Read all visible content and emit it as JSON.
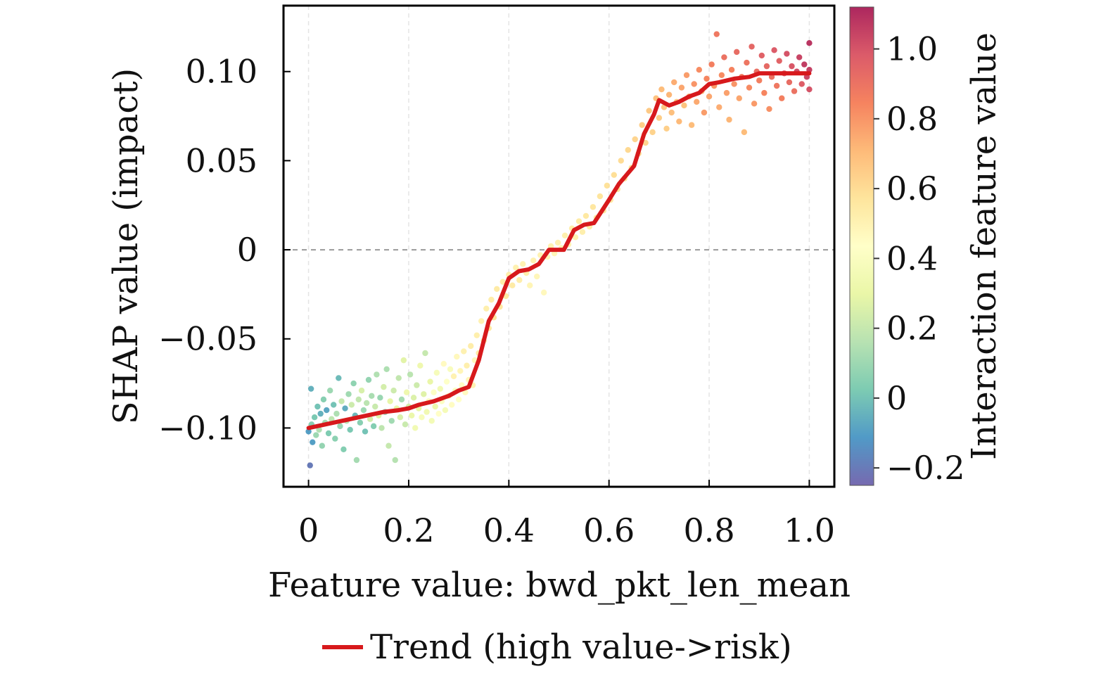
{
  "chart_data": {
    "type": "scatter",
    "title": "",
    "xlabel": "Feature value: bwd_pkt_len_mean",
    "ylabel": "SHAP value (impact)",
    "xlim": [
      -0.05,
      1.05
    ],
    "ylim": [
      -0.133,
      0.137
    ],
    "x_ticks": [
      0,
      0.2,
      0.4,
      0.6,
      0.8,
      1.0
    ],
    "x_tick_labels": [
      "0",
      "0.2",
      "0.4",
      "0.6",
      "0.8",
      "1.0"
    ],
    "y_ticks": [
      0.1,
      0.05,
      0,
      -0.05,
      -0.1
    ],
    "y_tick_labels": [
      "0.10",
      "0.05",
      "0",
      "−0.05",
      "−0.10"
    ],
    "reference_line": {
      "y": 0,
      "style": "dashed",
      "color": "#9a9a9a"
    },
    "x_grid": true,
    "colorbar": {
      "label": "Interaction feature value",
      "range": [
        -0.25,
        1.12
      ],
      "ticks": [
        1.0,
        0.8,
        0.6,
        0.4,
        0.2,
        0,
        -0.2
      ],
      "tick_labels": [
        "1.0",
        "0.8",
        "0.6",
        "0.4",
        "0.2",
        "0",
        "−0.2"
      ],
      "colormap": "Spectral_r",
      "stops": [
        "#5e4fa2",
        "#3288bd",
        "#66c2a5",
        "#abdda4",
        "#e6f598",
        "#ffffbf",
        "#fee08b",
        "#fdae61",
        "#f46d43",
        "#d53e4f",
        "#9e0142"
      ]
    },
    "trend": {
      "name": "Trend (high value->risk)",
      "color": "#d7191c",
      "x": [
        0,
        0.05,
        0.1,
        0.15,
        0.18,
        0.2,
        0.22,
        0.25,
        0.28,
        0.3,
        0.32,
        0.34,
        0.36,
        0.38,
        0.4,
        0.42,
        0.44,
        0.46,
        0.48,
        0.51,
        0.53,
        0.55,
        0.57,
        0.6,
        0.62,
        0.65,
        0.67,
        0.69,
        0.7,
        0.72,
        0.74,
        0.76,
        0.78,
        0.8,
        0.82,
        0.85,
        0.88,
        0.9,
        0.93,
        0.96,
        0.98,
        1.0
      ],
      "y": [
        -0.1,
        -0.097,
        -0.094,
        -0.091,
        -0.09,
        -0.089,
        -0.087,
        -0.085,
        -0.082,
        -0.079,
        -0.077,
        -0.062,
        -0.04,
        -0.03,
        -0.016,
        -0.012,
        -0.011,
        -0.008,
        0.0,
        0.0,
        0.011,
        0.014,
        0.015,
        0.028,
        0.037,
        0.047,
        0.065,
        0.076,
        0.084,
        0.081,
        0.083,
        0.086,
        0.088,
        0.093,
        0.094,
        0.096,
        0.097,
        0.099,
        0.099,
        0.099,
        0.099,
        0.099
      ]
    },
    "scatter": {
      "description_points": "sampled SHAP values for bwd_pkt_len_mean, colored by interaction feature value",
      "points": [
        [
          0.0,
          -0.102,
          -0.1
        ],
        [
          0.003,
          -0.121,
          -0.2
        ],
        [
          0.005,
          -0.078,
          -0.05
        ],
        [
          0.006,
          -0.098,
          0.05
        ],
        [
          0.008,
          -0.108,
          -0.1
        ],
        [
          0.012,
          -0.094,
          0.02
        ],
        [
          0.015,
          -0.104,
          0.1
        ],
        [
          0.018,
          -0.088,
          0.0
        ],
        [
          0.021,
          -0.101,
          0.15
        ],
        [
          0.024,
          -0.092,
          -0.05
        ],
        [
          0.027,
          -0.11,
          0.08
        ],
        [
          0.03,
          -0.084,
          0.05
        ],
        [
          0.033,
          -0.097,
          0.12
        ],
        [
          0.036,
          -0.09,
          -0.08
        ],
        [
          0.04,
          -0.103,
          0.03
        ],
        [
          0.043,
          -0.079,
          0.1
        ],
        [
          0.046,
          -0.095,
          0.18
        ],
        [
          0.05,
          -0.087,
          0.0
        ],
        [
          0.053,
          -0.106,
          0.06
        ],
        [
          0.056,
          -0.092,
          0.14
        ],
        [
          0.06,
          -0.072,
          -0.02
        ],
        [
          0.063,
          -0.099,
          0.09
        ],
        [
          0.066,
          -0.085,
          0.2
        ],
        [
          0.07,
          -0.112,
          0.04
        ],
        [
          0.073,
          -0.089,
          -0.06
        ],
        [
          0.076,
          -0.096,
          0.16
        ],
        [
          0.08,
          -0.081,
          0.11
        ],
        [
          0.083,
          -0.101,
          0.02
        ],
        [
          0.086,
          -0.087,
          0.22
        ],
        [
          0.09,
          -0.075,
          0.07
        ],
        [
          0.093,
          -0.093,
          -0.03
        ],
        [
          0.096,
          -0.118,
          0.12
        ],
        [
          0.1,
          -0.084,
          0.19
        ],
        [
          0.103,
          -0.097,
          0.05
        ],
        [
          0.106,
          -0.079,
          0.25
        ],
        [
          0.11,
          -0.09,
          0.1
        ],
        [
          0.113,
          -0.102,
          0.0
        ],
        [
          0.116,
          -0.086,
          0.17
        ],
        [
          0.12,
          -0.073,
          0.08
        ],
        [
          0.123,
          -0.095,
          0.23
        ],
        [
          0.126,
          -0.082,
          0.13
        ],
        [
          0.13,
          -0.099,
          0.04
        ],
        [
          0.133,
          -0.088,
          0.21
        ],
        [
          0.136,
          -0.07,
          0.15
        ],
        [
          0.14,
          -0.093,
          0.27
        ],
        [
          0.143,
          -0.083,
          0.09
        ],
        [
          0.146,
          -0.1,
          0.18
        ],
        [
          0.15,
          -0.077,
          0.24
        ],
        [
          0.153,
          -0.091,
          0.06
        ],
        [
          0.156,
          -0.067,
          0.14
        ],
        [
          0.16,
          -0.11,
          0.2
        ],
        [
          0.163,
          -0.085,
          0.29
        ],
        [
          0.166,
          -0.096,
          0.11
        ],
        [
          0.17,
          -0.079,
          0.22
        ],
        [
          0.173,
          -0.118,
          0.16
        ],
        [
          0.176,
          -0.089,
          0.3
        ],
        [
          0.18,
          -0.072,
          0.19
        ],
        [
          0.183,
          -0.094,
          0.25
        ],
        [
          0.186,
          -0.084,
          0.12
        ],
        [
          0.19,
          -0.062,
          0.28
        ],
        [
          0.193,
          -0.098,
          0.21
        ],
        [
          0.196,
          -0.08,
          0.33
        ],
        [
          0.2,
          -0.088,
          0.24
        ],
        [
          0.203,
          -0.07,
          0.17
        ],
        [
          0.206,
          -0.093,
          0.31
        ],
        [
          0.21,
          -0.083,
          0.26
        ],
        [
          0.213,
          -0.1,
          0.35
        ],
        [
          0.216,
          -0.076,
          0.22
        ],
        [
          0.22,
          -0.089,
          0.29
        ],
        [
          0.223,
          -0.065,
          0.33
        ],
        [
          0.226,
          -0.094,
          0.38
        ],
        [
          0.23,
          -0.081,
          0.27
        ],
        [
          0.233,
          -0.058,
          0.2
        ],
        [
          0.236,
          -0.091,
          0.34
        ],
        [
          0.24,
          -0.085,
          0.4
        ],
        [
          0.243,
          -0.074,
          0.3
        ],
        [
          0.246,
          -0.096,
          0.36
        ],
        [
          0.25,
          -0.08,
          0.42
        ],
        [
          0.253,
          -0.088,
          0.32
        ],
        [
          0.256,
          -0.069,
          0.38
        ],
        [
          0.26,
          -0.092,
          0.44
        ],
        [
          0.263,
          -0.078,
          0.35
        ],
        [
          0.266,
          -0.085,
          0.41
        ],
        [
          0.27,
          -0.064,
          0.46
        ],
        [
          0.273,
          -0.09,
          0.37
        ],
        [
          0.276,
          -0.074,
          0.43
        ],
        [
          0.28,
          -0.082,
          0.48
        ],
        [
          0.283,
          -0.067,
          0.39
        ],
        [
          0.286,
          -0.087,
          0.45
        ],
        [
          0.29,
          -0.071,
          0.5
        ],
        [
          0.293,
          -0.079,
          0.41
        ],
        [
          0.296,
          -0.06,
          0.47
        ],
        [
          0.3,
          -0.084,
          0.43
        ],
        [
          0.303,
          -0.068,
          0.49
        ],
        [
          0.306,
          -0.076,
          0.44
        ],
        [
          0.31,
          -0.057,
          0.51
        ],
        [
          0.313,
          -0.08,
          0.46
        ],
        [
          0.316,
          -0.065,
          0.52
        ],
        [
          0.32,
          -0.073,
          0.48
        ],
        [
          0.324,
          -0.054,
          0.53
        ],
        [
          0.328,
          -0.076,
          0.5
        ],
        [
          0.332,
          -0.062,
          0.47
        ],
        [
          0.336,
          -0.048,
          0.52
        ],
        [
          0.34,
          -0.058,
          0.54
        ],
        [
          0.345,
          -0.04,
          0.5
        ],
        [
          0.35,
          -0.051,
          0.55
        ],
        [
          0.355,
          -0.033,
          0.52
        ],
        [
          0.36,
          -0.044,
          0.56
        ],
        [
          0.365,
          -0.028,
          0.53
        ],
        [
          0.37,
          -0.038,
          0.57
        ],
        [
          0.376,
          -0.022,
          0.54
        ],
        [
          0.382,
          -0.032,
          0.56
        ],
        [
          0.388,
          -0.018,
          0.53
        ],
        [
          0.394,
          -0.026,
          0.55
        ],
        [
          0.4,
          -0.014,
          0.52
        ],
        [
          0.407,
          -0.02,
          0.54
        ],
        [
          0.414,
          -0.01,
          0.51
        ],
        [
          0.421,
          -0.017,
          0.53
        ],
        [
          0.428,
          -0.008,
          0.5
        ],
        [
          0.435,
          -0.013,
          0.52
        ],
        [
          0.442,
          -0.02,
          0.49
        ],
        [
          0.449,
          -0.006,
          0.51
        ],
        [
          0.456,
          -0.015,
          0.48
        ],
        [
          0.463,
          -0.003,
          0.5
        ],
        [
          0.47,
          -0.024,
          0.47
        ],
        [
          0.477,
          -0.004,
          0.49
        ],
        [
          0.484,
          0.002,
          0.5
        ],
        [
          0.491,
          -0.002,
          0.48
        ],
        [
          0.498,
          0.004,
          0.51
        ],
        [
          0.505,
          0.001,
          0.49
        ],
        [
          0.512,
          0.008,
          0.52
        ],
        [
          0.519,
          0.003,
          0.5
        ],
        [
          0.526,
          0.012,
          0.53
        ],
        [
          0.533,
          0.007,
          0.51
        ],
        [
          0.54,
          0.016,
          0.54
        ],
        [
          0.547,
          0.01,
          0.52
        ],
        [
          0.554,
          0.019,
          0.55
        ],
        [
          0.561,
          0.013,
          0.53
        ],
        [
          0.568,
          0.024,
          0.56
        ],
        [
          0.575,
          0.018,
          0.54
        ],
        [
          0.582,
          0.03,
          0.57
        ],
        [
          0.589,
          0.022,
          0.55
        ],
        [
          0.596,
          0.036,
          0.58
        ],
        [
          0.603,
          0.028,
          0.56
        ],
        [
          0.61,
          0.042,
          0.59
        ],
        [
          0.617,
          0.034,
          0.57
        ],
        [
          0.624,
          0.05,
          0.6
        ],
        [
          0.631,
          0.04,
          0.58
        ],
        [
          0.638,
          0.056,
          0.61
        ],
        [
          0.645,
          0.046,
          0.59
        ],
        [
          0.652,
          0.062,
          0.62
        ],
        [
          0.659,
          0.054,
          0.6
        ],
        [
          0.666,
          0.07,
          0.64
        ],
        [
          0.673,
          0.06,
          0.62
        ],
        [
          0.68,
          0.078,
          0.66
        ],
        [
          0.687,
          0.066,
          0.63
        ],
        [
          0.694,
          0.085,
          0.68
        ],
        [
          0.7,
          0.074,
          0.65
        ],
        [
          0.705,
          0.09,
          0.7
        ],
        [
          0.71,
          0.08,
          0.67
        ],
        [
          0.715,
          0.068,
          0.64
        ],
        [
          0.72,
          0.087,
          0.72
        ],
        [
          0.725,
          0.077,
          0.69
        ],
        [
          0.73,
          0.094,
          0.74
        ],
        [
          0.735,
          0.083,
          0.66
        ],
        [
          0.74,
          0.072,
          0.71
        ],
        [
          0.745,
          0.091,
          0.76
        ],
        [
          0.75,
          0.081,
          0.68
        ],
        [
          0.755,
          0.098,
          0.78
        ],
        [
          0.76,
          0.086,
          0.73
        ],
        [
          0.765,
          0.07,
          0.7
        ],
        [
          0.77,
          0.093,
          0.8
        ],
        [
          0.775,
          0.083,
          0.75
        ],
        [
          0.78,
          0.101,
          0.82
        ],
        [
          0.785,
          0.089,
          0.72
        ],
        [
          0.79,
          0.077,
          0.78
        ],
        [
          0.795,
          0.096,
          0.84
        ],
        [
          0.8,
          0.086,
          0.76
        ],
        [
          0.805,
          0.104,
          0.86
        ],
        [
          0.81,
          0.092,
          0.79
        ],
        [
          0.815,
          0.121,
          0.88
        ],
        [
          0.82,
          0.08,
          0.74
        ],
        [
          0.825,
          0.098,
          0.82
        ],
        [
          0.83,
          0.108,
          0.9
        ],
        [
          0.835,
          0.088,
          0.77
        ],
        [
          0.84,
          0.073,
          0.72
        ],
        [
          0.845,
          0.101,
          0.85
        ],
        [
          0.85,
          0.093,
          0.8
        ],
        [
          0.855,
          0.111,
          0.92
        ],
        [
          0.86,
          0.085,
          0.76
        ],
        [
          0.865,
          0.097,
          0.87
        ],
        [
          0.87,
          0.066,
          0.7
        ],
        [
          0.875,
          0.105,
          0.89
        ],
        [
          0.88,
          0.091,
          0.83
        ],
        [
          0.885,
          0.114,
          0.94
        ],
        [
          0.89,
          0.082,
          0.79
        ],
        [
          0.895,
          0.1,
          0.91
        ],
        [
          0.9,
          0.095,
          0.86
        ],
        [
          0.905,
          0.109,
          0.96
        ],
        [
          0.91,
          0.088,
          0.84
        ],
        [
          0.915,
          0.103,
          0.93
        ],
        [
          0.92,
          0.079,
          0.81
        ],
        [
          0.925,
          0.097,
          0.9
        ],
        [
          0.93,
          0.112,
          0.98
        ],
        [
          0.935,
          0.092,
          0.88
        ],
        [
          0.94,
          0.106,
          0.95
        ],
        [
          0.945,
          0.085,
          0.86
        ],
        [
          0.95,
          0.099,
          0.97
        ],
        [
          0.955,
          0.11,
          1.0
        ],
        [
          0.96,
          0.094,
          0.92
        ],
        [
          0.965,
          0.103,
          0.99
        ],
        [
          0.97,
          0.089,
          0.9
        ],
        [
          0.975,
          0.1,
          1.02
        ],
        [
          0.98,
          0.108,
          1.04
        ],
        [
          0.985,
          0.093,
          0.97
        ],
        [
          0.99,
          0.104,
          1.06
        ],
        [
          0.995,
          0.097,
          1.03
        ],
        [
          1.0,
          0.116,
          1.08
        ],
        [
          1.0,
          0.09,
          1.0
        ],
        [
          1.0,
          0.101,
          1.05
        ]
      ]
    },
    "legend": {
      "position": "bottom-center",
      "entries": [
        {
          "label": "Trend (high value->risk)",
          "color": "#d7191c"
        }
      ]
    }
  }
}
